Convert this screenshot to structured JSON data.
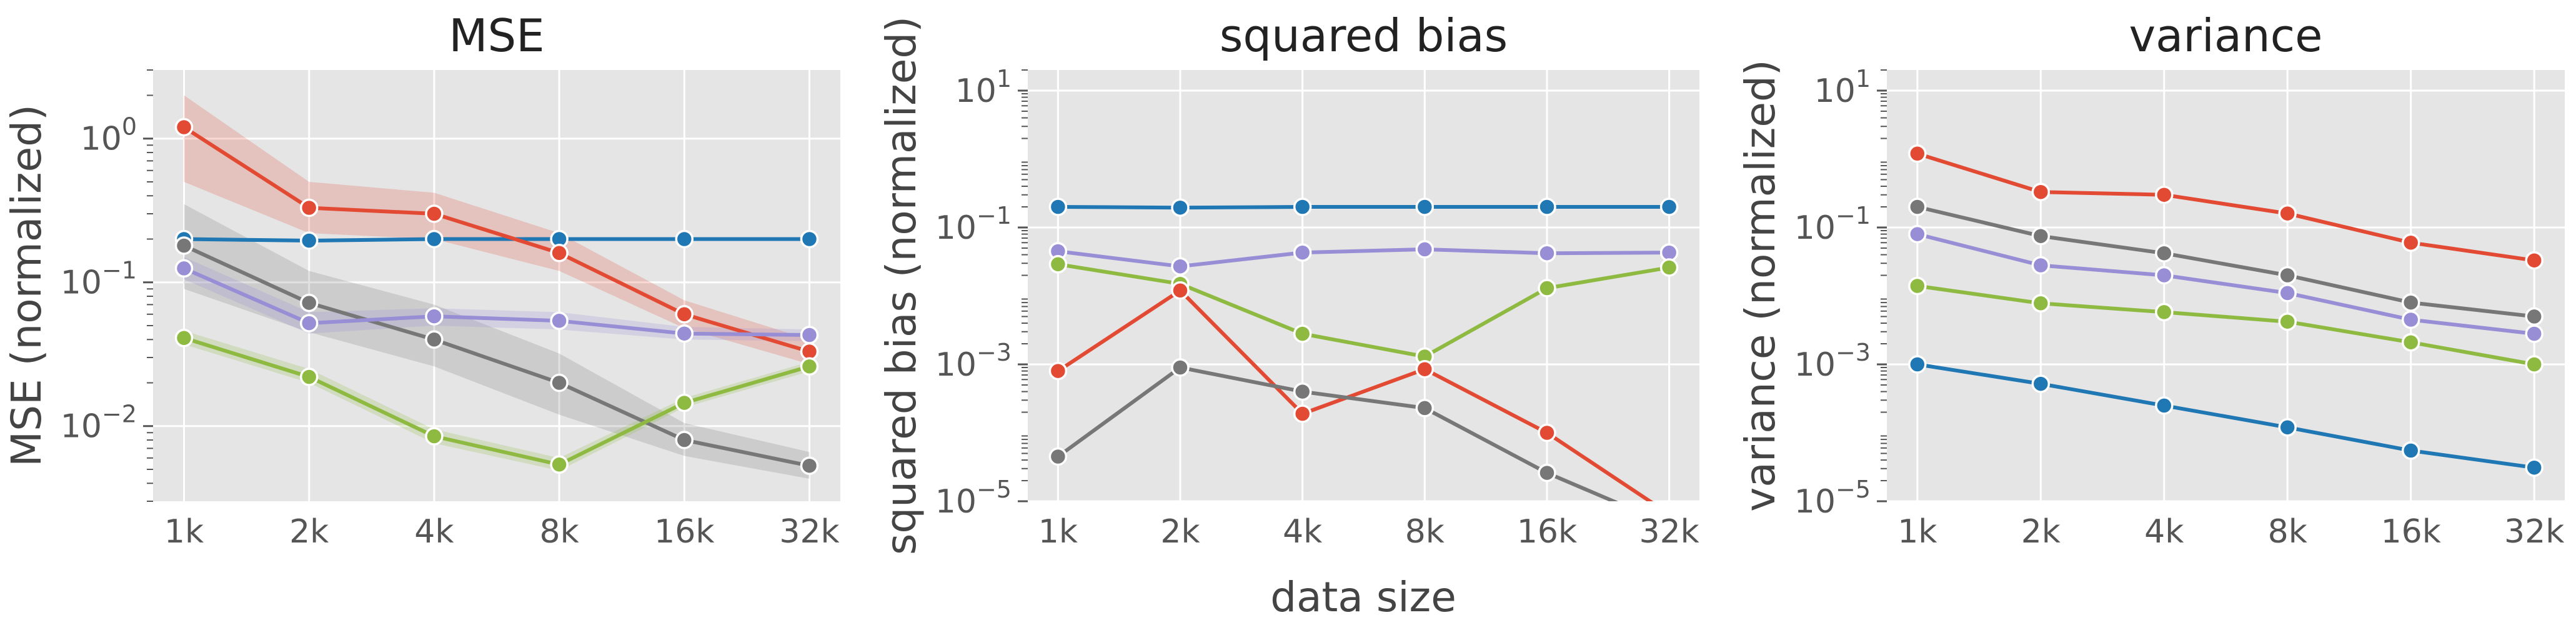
{
  "xlabel": "data size",
  "chart_data": [
    {
      "type": "line",
      "title": "MSE",
      "ylabel": "MSE (normalized)",
      "yscale": "log",
      "ylim": [
        0.003,
        3
      ],
      "yticks": [
        {
          "base": "10",
          "exp": "−2",
          "value": 0.01
        },
        {
          "base": "10",
          "exp": "−1",
          "value": 0.1
        },
        {
          "base": "10",
          "exp": "0",
          "value": 1
        }
      ],
      "categories": [
        "1k",
        "2k",
        "4k",
        "8k",
        "16k",
        "32k"
      ],
      "grid": true,
      "series": [
        {
          "color": "#1f77b4",
          "values": [
            0.2,
            0.195,
            0.2,
            0.2,
            0.2,
            0.2
          ],
          "band": null
        },
        {
          "color": "#e24a33",
          "values": [
            1.2,
            0.33,
            0.3,
            0.16,
            0.06,
            0.033
          ],
          "band": {
            "lower": [
              0.5,
              0.22,
              0.2,
              0.12,
              0.048,
              0.027
            ],
            "upper": [
              2.0,
              0.5,
              0.42,
              0.22,
              0.075,
              0.04
            ]
          }
        },
        {
          "color": "#777777",
          "values": [
            0.18,
            0.072,
            0.04,
            0.02,
            0.008,
            0.0053
          ],
          "band": {
            "lower": [
              0.09,
              0.045,
              0.026,
              0.012,
              0.0062,
              0.0043
            ],
            "upper": [
              0.35,
              0.12,
              0.07,
              0.032,
              0.0105,
              0.0066
            ]
          }
        },
        {
          "color": "#988ed5",
          "values": [
            0.125,
            0.052,
            0.058,
            0.054,
            0.044,
            0.043
          ],
          "band": {
            "lower": [
              0.105,
              0.044,
              0.05,
              0.047,
              0.04,
              0.039
            ],
            "upper": [
              0.15,
              0.062,
              0.066,
              0.062,
              0.049,
              0.047
            ]
          }
        },
        {
          "color": "#8eba42",
          "values": [
            0.041,
            0.022,
            0.0085,
            0.0054,
            0.0145,
            0.026
          ],
          "band": {
            "lower": [
              0.037,
              0.02,
              0.0076,
              0.0049,
              0.0135,
              0.024
            ],
            "upper": [
              0.046,
              0.025,
              0.0095,
              0.006,
              0.0157,
              0.028
            ]
          }
        }
      ]
    },
    {
      "type": "line",
      "title": "squared bias",
      "ylabel": "squared bias (normalized)",
      "yscale": "log",
      "ylim": [
        1e-05,
        20
      ],
      "yticks": [
        {
          "base": "10",
          "exp": "−5",
          "value": 1e-05
        },
        {
          "base": "10",
          "exp": "−3",
          "value": 0.001
        },
        {
          "base": "10",
          "exp": "−1",
          "value": 0.1
        },
        {
          "base": "10",
          "exp": "1",
          "value": 10
        }
      ],
      "categories": [
        "1k",
        "2k",
        "4k",
        "8k",
        "16k",
        "32k"
      ],
      "grid": true,
      "series": [
        {
          "color": "#1f77b4",
          "values": [
            0.2,
            0.195,
            0.2,
            0.2,
            0.2,
            0.2
          ]
        },
        {
          "color": "#988ed5",
          "values": [
            0.045,
            0.027,
            0.043,
            0.048,
            0.042,
            0.043
          ]
        },
        {
          "color": "#8eba42",
          "values": [
            0.029,
            0.015,
            0.0028,
            0.0013,
            0.013,
            0.026
          ]
        },
        {
          "color": "#e24a33",
          "values": [
            0.0008,
            0.012,
            0.00019,
            0.00085,
            0.0001,
            6.5e-06
          ]
        },
        {
          "color": "#777777",
          "values": [
            4.5e-05,
            0.0009,
            0.0004,
            0.00023,
            2.6e-05,
            4.5e-06
          ]
        }
      ]
    },
    {
      "type": "line",
      "title": "variance",
      "ylabel": "variance (normalized)",
      "yscale": "log",
      "ylim": [
        1e-05,
        20
      ],
      "yticks": [
        {
          "base": "10",
          "exp": "−5",
          "value": 1e-05
        },
        {
          "base": "10",
          "exp": "−3",
          "value": 0.001
        },
        {
          "base": "10",
          "exp": "−1",
          "value": 0.1
        },
        {
          "base": "10",
          "exp": "1",
          "value": 10
        }
      ],
      "categories": [
        "1k",
        "2k",
        "4k",
        "8k",
        "16k",
        "32k"
      ],
      "grid": true,
      "series": [
        {
          "color": "#e24a33",
          "values": [
            1.2,
            0.33,
            0.3,
            0.16,
            0.06,
            0.033
          ]
        },
        {
          "color": "#777777",
          "values": [
            0.2,
            0.075,
            0.042,
            0.02,
            0.008,
            0.005
          ]
        },
        {
          "color": "#988ed5",
          "values": [
            0.08,
            0.028,
            0.02,
            0.011,
            0.0045,
            0.0028
          ]
        },
        {
          "color": "#8eba42",
          "values": [
            0.014,
            0.0078,
            0.0058,
            0.0042,
            0.0021,
            0.001
          ]
        },
        {
          "color": "#1f77b4",
          "values": [
            0.001,
            0.00052,
            0.00025,
            0.00012,
            5.5e-05,
            3.1e-05
          ]
        }
      ]
    }
  ]
}
